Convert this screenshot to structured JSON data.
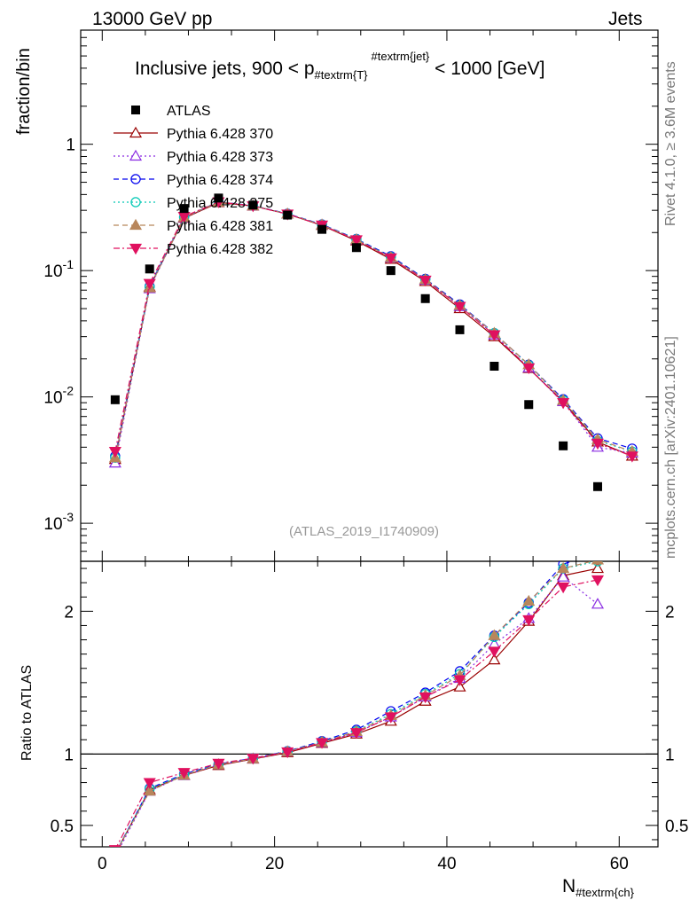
{
  "header": {
    "left": "13000 GeV pp",
    "right": "Jets"
  },
  "side_labels": {
    "top": "Rivet 4.1.0, ≥ 3.6M events",
    "bottom": "mcplots.cern.ch [arXiv:2401.10621]"
  },
  "chart_data": [
    {
      "type": "scatter",
      "panel": "main",
      "title_pre": "Inclusive jets, 900 < p",
      "title_sub": "#textrm{T}",
      "title_sup": "#textrm{jet}",
      "title_post": " < 1000 [GeV]",
      "ylabel": "fraction/bin",
      "yscale": "log",
      "ylim": [
        0.0005,
        8
      ],
      "xlim": [
        -2.5,
        64.5
      ],
      "ytick_labels": [
        "10^{-3}",
        "10^{-2}",
        "10^{-1}",
        "1"
      ],
      "yticks": [
        0.001,
        0.01,
        0.1,
        1
      ],
      "analysis_tag": "(ATLAS_2019_I1740909)",
      "x": [
        1.5,
        5.5,
        9.5,
        13.5,
        17.5,
        21.5,
        25.5,
        29.5,
        33.5,
        37.5,
        41.5,
        45.5,
        49.5,
        53.5,
        57.5,
        61.5
      ],
      "data": {
        "name": "ATLAS",
        "values": [
          0.0095,
          0.103,
          0.31,
          0.375,
          0.33,
          0.275,
          0.212,
          0.152,
          0.1,
          0.06,
          0.034,
          0.0175,
          0.0087,
          0.0041,
          0.00195,
          null
        ]
      },
      "series": [
        {
          "name": "Pythia 6.428 370",
          "color": "#990000",
          "marker": "triangle-up-open",
          "dash": "solid",
          "values": [
            0.0032,
            0.074,
            0.26,
            0.345,
            0.325,
            0.28,
            0.228,
            0.172,
            0.123,
            0.082,
            0.05,
            0.03,
            0.0168,
            0.0092,
            0.0044,
            0.0034
          ]
        },
        {
          "name": "Pythia 6.428 373",
          "color": "#8a2be2",
          "marker": "triangle-up-open",
          "dash": "dotted",
          "values": [
            0.003,
            0.072,
            0.262,
            0.348,
            0.326,
            0.28,
            0.23,
            0.175,
            0.126,
            0.084,
            0.052,
            0.031,
            0.017,
            0.0092,
            0.004,
            0.0036
          ]
        },
        {
          "name": "Pythia 6.428 374",
          "color": "#0000ee",
          "marker": "circle-open",
          "dash": "dashed",
          "values": [
            0.0034,
            0.075,
            0.265,
            0.35,
            0.327,
            0.282,
            0.232,
            0.178,
            0.13,
            0.086,
            0.054,
            0.032,
            0.018,
            0.0096,
            0.0047,
            0.0039
          ]
        },
        {
          "name": "Pythia 6.428 375",
          "color": "#00c8b4",
          "marker": "circle-open",
          "dash": "dotted",
          "values": [
            0.0033,
            0.074,
            0.263,
            0.349,
            0.327,
            0.281,
            0.231,
            0.177,
            0.128,
            0.085,
            0.053,
            0.032,
            0.0178,
            0.0094,
            0.0045,
            0.0037
          ]
        },
        {
          "name": "Pythia 6.428 381",
          "color": "#b8865b",
          "marker": "triangle-up-filled",
          "dash": "dashed",
          "values": [
            0.0033,
            0.073,
            0.264,
            0.348,
            0.326,
            0.281,
            0.23,
            0.176,
            0.127,
            0.085,
            0.053,
            0.032,
            0.018,
            0.0094,
            0.0046,
            0.0037
          ]
        },
        {
          "name": "Pythia 6.428 382",
          "color": "#e0115f",
          "marker": "triangle-down-filled",
          "dash": "dashdot",
          "values": [
            0.0037,
            0.079,
            0.268,
            0.35,
            0.325,
            0.28,
            0.229,
            0.175,
            0.126,
            0.084,
            0.052,
            0.031,
            0.017,
            0.009,
            0.0043,
            0.0034
          ]
        }
      ]
    },
    {
      "type": "line",
      "panel": "ratio",
      "ylabel": "Ratio to ATLAS",
      "xlabel_main": "N",
      "xlabel_sub": "#textrm{ch}",
      "ylim": [
        0.35,
        2.35
      ],
      "xlim": [
        -2.5,
        64.5
      ],
      "yticks": [
        0.5,
        1,
        2
      ],
      "ytick_labels": [
        "0.5",
        "1",
        "2"
      ],
      "xticks": [
        0,
        20,
        40,
        60
      ],
      "xtick_labels": [
        "0",
        "20",
        "40",
        "60"
      ],
      "x": [
        1.5,
        5.5,
        9.5,
        13.5,
        17.5,
        21.5,
        25.5,
        29.5,
        33.5,
        37.5,
        41.5,
        45.5,
        49.5,
        53.5,
        57.5
      ],
      "series": [
        {
          "name": "Pythia 6.428 370",
          "values": [
            0.3,
            0.75,
            0.85,
            0.92,
            0.965,
            1.01,
            1.075,
            1.14,
            1.23,
            1.37,
            1.47,
            1.66,
            1.93,
            2.25,
            2.3
          ]
        },
        {
          "name": "Pythia 6.428 373",
          "values": [
            0.28,
            0.74,
            0.85,
            0.925,
            0.966,
            1.015,
            1.08,
            1.15,
            1.26,
            1.4,
            1.53,
            1.77,
            1.95,
            2.24,
            2.05
          ]
        },
        {
          "name": "Pythia 6.428 374",
          "values": [
            0.3,
            0.76,
            0.86,
            0.93,
            0.97,
            1.02,
            1.09,
            1.17,
            1.3,
            1.43,
            1.58,
            1.83,
            2.06,
            2.33,
            2.41
          ]
        },
        {
          "name": "Pythia 6.428 375",
          "values": [
            0.3,
            0.755,
            0.855,
            0.928,
            0.968,
            1.018,
            1.085,
            1.16,
            1.28,
            1.42,
            1.56,
            1.82,
            2.05,
            2.3,
            2.35
          ]
        },
        {
          "name": "Pythia 6.428 381",
          "values": [
            0.3,
            0.74,
            0.852,
            0.926,
            0.967,
            1.017,
            1.083,
            1.158,
            1.27,
            1.41,
            1.55,
            1.83,
            2.07,
            2.3,
            2.36
          ]
        },
        {
          "name": "Pythia 6.428 382",
          "values": [
            0.33,
            0.8,
            0.87,
            0.935,
            0.97,
            1.015,
            1.08,
            1.15,
            1.26,
            1.4,
            1.52,
            1.72,
            1.94,
            2.17,
            2.22
          ]
        }
      ]
    }
  ]
}
